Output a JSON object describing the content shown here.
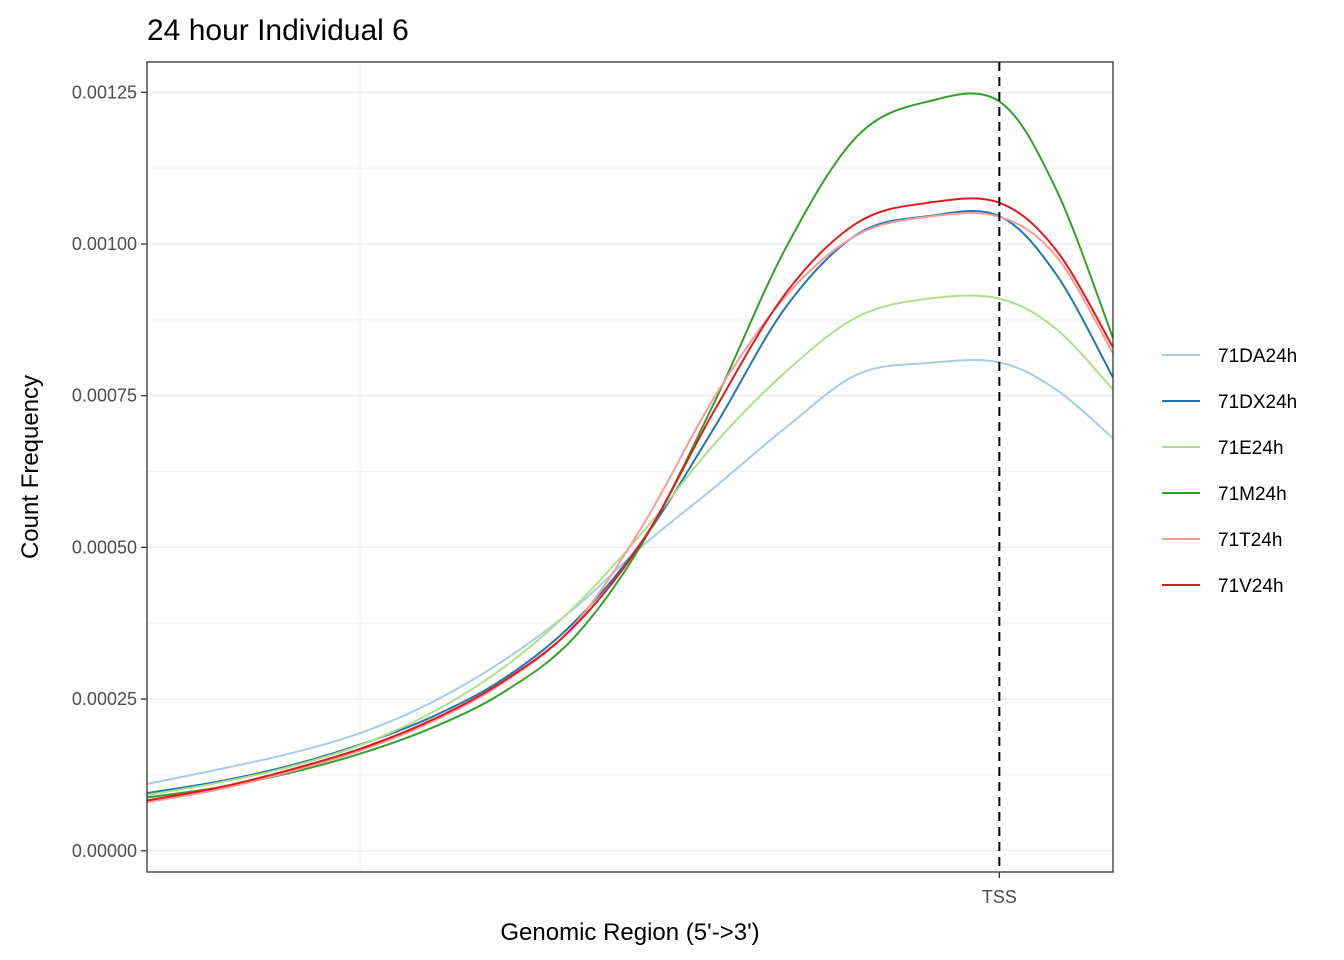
{
  "chart_data": {
    "type": "line",
    "title": "24 hour Individual 6",
    "xlabel": "Genomic Region (5'->3')",
    "ylabel": "Count Frequency",
    "x_ticks": [
      {
        "x": 0,
        "label": "TSS"
      }
    ],
    "xlim": [
      -3000,
      400
    ],
    "y_ticks": [
      0.0,
      0.00025,
      0.0005,
      0.00075,
      0.001,
      0.00125
    ],
    "y_tick_labels": [
      "0.00000",
      "0.00025",
      "0.00050",
      "0.00075",
      "0.00100",
      "0.00125"
    ],
    "ylim": [
      -3.5e-05,
      0.0013
    ],
    "grid": true,
    "legend_position": "right",
    "reference_line": {
      "x": 0,
      "style": "dashed",
      "label": "TSS"
    },
    "x": [
      -3000,
      -2750,
      -2500,
      -2250,
      -2000,
      -1750,
      -1500,
      -1250,
      -1000,
      -750,
      -500,
      -250,
      0,
      200,
      400
    ],
    "series": [
      {
        "name": "71DA24h",
        "color": "#a6cee3",
        "values": [
          0.00011,
          0.000134,
          0.00016,
          0.000194,
          0.000244,
          0.000312,
          0.000398,
          0.000505,
          0.0006,
          0.000698,
          0.000785,
          0.000804,
          0.000805,
          0.00076,
          0.00068
        ]
      },
      {
        "name": "71DX24h",
        "color": "#1f78b4",
        "values": [
          9.5e-05,
          0.000114,
          0.00014,
          0.000175,
          0.00022,
          0.000282,
          0.000375,
          0.000515,
          0.0007,
          0.000897,
          0.001016,
          0.001046,
          0.001046,
          0.00095,
          0.00078
        ]
      },
      {
        "name": "71E24h",
        "color": "#b2df8a",
        "values": [
          9.2e-05,
          0.000112,
          0.000138,
          0.000174,
          0.000227,
          0.0003,
          0.0004,
          0.000528,
          0.000672,
          0.00079,
          0.00088,
          0.00091,
          0.00091,
          0.00086,
          0.00076
        ]
      },
      {
        "name": "71M24h",
        "color": "#33a02c",
        "values": [
          8.8e-05,
          0.000104,
          0.000128,
          0.00016,
          0.000202,
          0.00026,
          0.00035,
          0.000512,
          0.000742,
          0.000995,
          0.001178,
          0.001235,
          0.001235,
          0.00109,
          0.000845
        ]
      },
      {
        "name": "71T24h",
        "color": "#fb9a99",
        "values": [
          8e-05,
          0.000101,
          0.00013,
          0.000165,
          0.000212,
          0.000276,
          0.00037,
          0.00054,
          0.00075,
          0.000915,
          0.001015,
          0.001045,
          0.001045,
          0.00098,
          0.00082
        ]
      },
      {
        "name": "71V24h",
        "color": "#e31a1c",
        "values": [
          8.3e-05,
          0.000104,
          0.000133,
          0.000168,
          0.000215,
          0.000278,
          0.000368,
          0.000515,
          0.000728,
          0.00092,
          0.001035,
          0.001068,
          0.001068,
          0.00099,
          0.00083
        ]
      }
    ]
  }
}
